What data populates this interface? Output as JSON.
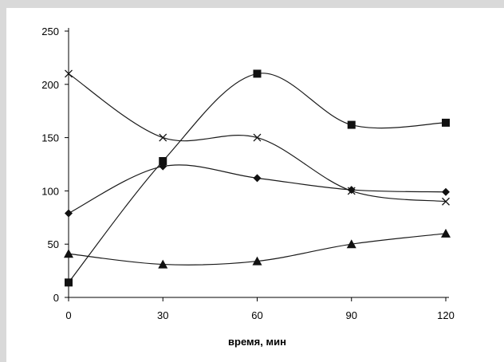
{
  "chart_data": {
    "type": "line",
    "title": "",
    "xlabel": "время, мин",
    "ylabel": "",
    "x": [
      0,
      30,
      60,
      90,
      120
    ],
    "xlim": [
      0,
      120
    ],
    "ylim": [
      0,
      250
    ],
    "x_ticks": [
      "0",
      "30",
      "60",
      "90",
      "120"
    ],
    "y_ticks": [
      "0",
      "50",
      "100",
      "150",
      "200",
      "250"
    ],
    "grid": false,
    "legend": "none",
    "series": [
      {
        "marker": "square",
        "color": "#1a1a1a",
        "values": [
          14,
          128,
          210,
          162,
          164
        ]
      },
      {
        "marker": "cross",
        "color": "#1a1a1a",
        "values": [
          210,
          150,
          150,
          100,
          90
        ]
      },
      {
        "marker": "diamond",
        "color": "#1a1a1a",
        "values": [
          79,
          123,
          112,
          101,
          99
        ]
      },
      {
        "marker": "triangle",
        "color": "#1a1a1a",
        "values": [
          41,
          31,
          34,
          50,
          60
        ]
      }
    ]
  }
}
